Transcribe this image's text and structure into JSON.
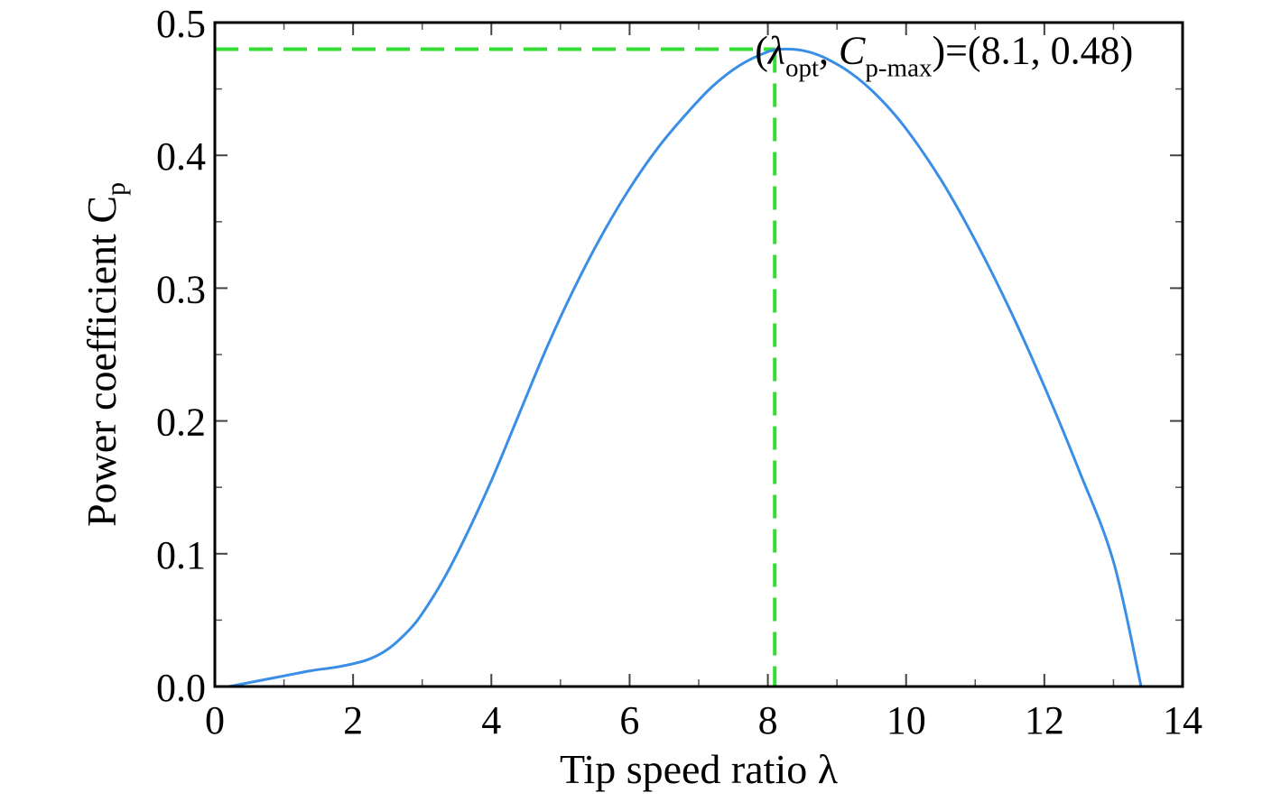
{
  "chart_data": {
    "type": "line",
    "xlabel": "Tip speed ratio λ",
    "ylabel": "Power coefficient C",
    "ylabel_sub": "p",
    "xlim": [
      0,
      14
    ],
    "ylim": [
      0,
      0.5
    ],
    "x_ticks": [
      0,
      2,
      4,
      6,
      8,
      10,
      12,
      14
    ],
    "x_tick_labels": [
      "0",
      "2",
      "4",
      "6",
      "8",
      "10",
      "12",
      "14"
    ],
    "y_ticks": [
      0,
      0.1,
      0.2,
      0.3,
      0.4,
      0.5
    ],
    "y_tick_labels": [
      "0.0",
      "0.1",
      "0.2",
      "0.3",
      "0.4",
      "0.5"
    ],
    "x_minor_step": 1,
    "y_minor_step": 0.05,
    "grid": false,
    "series": [
      {
        "color": "#3a8ee6",
        "x": [
          0.2,
          0.6,
          1.0,
          1.4,
          1.8,
          2.2,
          2.5,
          2.8,
          3.0,
          3.3,
          3.6,
          4.0,
          4.4,
          4.8,
          5.2,
          5.6,
          6.0,
          6.4,
          6.8,
          7.2,
          7.6,
          8.0,
          8.2,
          8.5,
          8.8,
          9.2,
          9.6,
          10.0,
          10.5,
          11.0,
          11.5,
          12.0,
          12.5,
          13.0,
          13.4
        ],
        "y": [
          0.0,
          0.004,
          0.008,
          0.012,
          0.015,
          0.02,
          0.028,
          0.042,
          0.055,
          0.08,
          0.11,
          0.155,
          0.205,
          0.255,
          0.3,
          0.34,
          0.375,
          0.405,
          0.43,
          0.452,
          0.468,
          0.478,
          0.48,
          0.479,
          0.474,
          0.462,
          0.444,
          0.42,
          0.382,
          0.336,
          0.284,
          0.226,
          0.163,
          0.094,
          0.0
        ]
      }
    ],
    "reference_lines": {
      "color": "#33dd33",
      "x": 8.1,
      "y": 0.48
    },
    "annotation": {
      "open": "(",
      "lambda": "λ",
      "lambda_sub": "opt",
      "sep": ", ",
      "c": "C",
      "c_sub": "p-max",
      "close": ")=(8.1, 0.48)",
      "at_x": 8.1,
      "at_y": 0.48
    }
  }
}
